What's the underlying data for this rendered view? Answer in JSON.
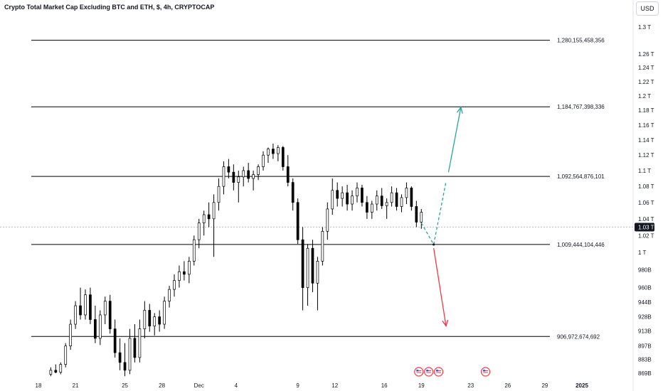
{
  "header": {
    "title": "Crypto Total Market Cap Excluding BTC and ETH, $, 4h, CRYPTOCAP",
    "currency_button": "USD"
  },
  "chart_data": {
    "type": "candlestick",
    "title": "Crypto Total Market Cap Excluding BTC and ETH, $, 4h, CRYPTOCAP",
    "y_scale": "log",
    "ylim": [
      864000000000,
      1330000000000
    ],
    "x_ticks": [
      {
        "label": "18",
        "day": 18
      },
      {
        "label": "21",
        "day": 21
      },
      {
        "label": "25",
        "day": 25
      },
      {
        "label": "28",
        "day": 28
      },
      {
        "label": "Dec",
        "day": 31
      },
      {
        "label": "4",
        "day": 34
      },
      {
        "label": "9",
        "day": 39
      },
      {
        "label": "12",
        "day": 42
      },
      {
        "label": "16",
        "day": 46
      },
      {
        "label": "19",
        "day": 49
      },
      {
        "label": "23",
        "day": 53
      },
      {
        "label": "26",
        "day": 56
      },
      {
        "label": "29",
        "day": 59
      },
      {
        "label": "2025",
        "day": 62
      }
    ],
    "y_ticks": [
      {
        "label": "1.3 T",
        "value": 1300000000000
      },
      {
        "label": "1.26 T",
        "value": 1260000000000
      },
      {
        "label": "1.24 T",
        "value": 1240000000000
      },
      {
        "label": "1.22 T",
        "value": 1220000000000
      },
      {
        "label": "1.2 T",
        "value": 1200000000000
      },
      {
        "label": "1.18 T",
        "value": 1180000000000
      },
      {
        "label": "1.16 T",
        "value": 1160000000000
      },
      {
        "label": "1.14 T",
        "value": 1140000000000
      },
      {
        "label": "1.12 T",
        "value": 1120000000000
      },
      {
        "label": "1.1 T",
        "value": 1100000000000
      },
      {
        "label": "1.08 T",
        "value": 1080000000000
      },
      {
        "label": "1.06 T",
        "value": 1060000000000
      },
      {
        "label": "1.04 T",
        "value": 1040000000000
      },
      {
        "label": "1.02 T",
        "value": 1020000000000
      },
      {
        "label": "1 T",
        "value": 1000000000000
      },
      {
        "label": "980B",
        "value": 980000000000
      },
      {
        "label": "960B",
        "value": 960000000000
      },
      {
        "label": "944B",
        "value": 944000000000
      },
      {
        "label": "928B",
        "value": 928000000000
      },
      {
        "label": "913B",
        "value": 913000000000
      },
      {
        "label": "897B",
        "value": 897000000000
      },
      {
        "label": "883B",
        "value": 883000000000
      },
      {
        "label": "869B",
        "value": 869000000000
      }
    ],
    "horizontal_levels": [
      {
        "label": "1,280,155,458,356",
        "value": 1280155458356
      },
      {
        "label": "1,184,767,398,336",
        "value": 1184767398336
      },
      {
        "label": "1,092,564,876,101",
        "value": 1092564876101
      },
      {
        "label": "1,009,444,104,446",
        "value": 1009444104446
      },
      {
        "label": "906,972,674,692",
        "value": 906972674692
      }
    ],
    "last_price": {
      "label": "1.03 T",
      "value": 1030000000000
    },
    "candles": [
      {
        "day": 19.0,
        "o": 868,
        "h": 875,
        "l": 866,
        "c": 872
      },
      {
        "day": 19.4,
        "o": 872,
        "h": 878,
        "l": 869,
        "c": 870
      },
      {
        "day": 19.8,
        "o": 870,
        "h": 880,
        "l": 868,
        "c": 878
      },
      {
        "day": 20.2,
        "o": 878,
        "h": 900,
        "l": 875,
        "c": 897
      },
      {
        "day": 20.6,
        "o": 897,
        "h": 925,
        "l": 893,
        "c": 920
      },
      {
        "day": 21.0,
        "o": 920,
        "h": 945,
        "l": 915,
        "c": 940
      },
      {
        "day": 21.4,
        "o": 940,
        "h": 960,
        "l": 925,
        "c": 930
      },
      {
        "day": 21.8,
        "o": 930,
        "h": 958,
        "l": 925,
        "c": 952
      },
      {
        "day": 22.2,
        "o": 952,
        "h": 960,
        "l": 920,
        "c": 925
      },
      {
        "day": 22.6,
        "o": 925,
        "h": 940,
        "l": 900,
        "c": 905
      },
      {
        "day": 23.0,
        "o": 905,
        "h": 935,
        "l": 898,
        "c": 930
      },
      {
        "day": 23.4,
        "o": 930,
        "h": 950,
        "l": 920,
        "c": 945
      },
      {
        "day": 23.8,
        "o": 945,
        "h": 952,
        "l": 910,
        "c": 915
      },
      {
        "day": 24.2,
        "o": 915,
        "h": 925,
        "l": 885,
        "c": 890
      },
      {
        "day": 24.6,
        "o": 890,
        "h": 905,
        "l": 872,
        "c": 880
      },
      {
        "day": 25.0,
        "o": 880,
        "h": 900,
        "l": 866,
        "c": 872
      },
      {
        "day": 25.4,
        "o": 872,
        "h": 915,
        "l": 868,
        "c": 905
      },
      {
        "day": 25.8,
        "o": 905,
        "h": 920,
        "l": 880,
        "c": 885
      },
      {
        "day": 26.2,
        "o": 885,
        "h": 925,
        "l": 880,
        "c": 915
      },
      {
        "day": 26.6,
        "o": 915,
        "h": 945,
        "l": 905,
        "c": 935
      },
      {
        "day": 27.0,
        "o": 935,
        "h": 942,
        "l": 912,
        "c": 918
      },
      {
        "day": 27.4,
        "o": 918,
        "h": 932,
        "l": 908,
        "c": 928
      },
      {
        "day": 27.8,
        "o": 928,
        "h": 935,
        "l": 912,
        "c": 920
      },
      {
        "day": 28.2,
        "o": 920,
        "h": 950,
        "l": 915,
        "c": 945
      },
      {
        "day": 28.6,
        "o": 945,
        "h": 962,
        "l": 938,
        "c": 958
      },
      {
        "day": 29.0,
        "o": 958,
        "h": 975,
        "l": 950,
        "c": 968
      },
      {
        "day": 29.4,
        "o": 968,
        "h": 985,
        "l": 960,
        "c": 978
      },
      {
        "day": 29.8,
        "o": 978,
        "h": 990,
        "l": 968,
        "c": 975
      },
      {
        "day": 30.2,
        "o": 975,
        "h": 995,
        "l": 965,
        "c": 990
      },
      {
        "day": 30.6,
        "o": 990,
        "h": 1020,
        "l": 985,
        "c": 1015
      },
      {
        "day": 31.0,
        "o": 1015,
        "h": 1040,
        "l": 1005,
        "c": 1035
      },
      {
        "day": 31.4,
        "o": 1035,
        "h": 1050,
        "l": 1020,
        "c": 1045
      },
      {
        "day": 31.8,
        "o": 1045,
        "h": 1060,
        "l": 1030,
        "c": 1040
      },
      {
        "day": 32.2,
        "o": 1040,
        "h": 1070,
        "l": 995,
        "c": 1060
      },
      {
        "day": 32.6,
        "o": 1060,
        "h": 1090,
        "l": 1050,
        "c": 1080
      },
      {
        "day": 33.0,
        "o": 1080,
        "h": 1112,
        "l": 1070,
        "c": 1105
      },
      {
        "day": 33.4,
        "o": 1105,
        "h": 1115,
        "l": 1090,
        "c": 1098
      },
      {
        "day": 33.8,
        "o": 1098,
        "h": 1108,
        "l": 1075,
        "c": 1085
      },
      {
        "day": 34.2,
        "o": 1085,
        "h": 1100,
        "l": 1060,
        "c": 1092
      },
      {
        "day": 34.6,
        "o": 1092,
        "h": 1105,
        "l": 1080,
        "c": 1100
      },
      {
        "day": 35.0,
        "o": 1100,
        "h": 1110,
        "l": 1085,
        "c": 1090
      },
      {
        "day": 35.4,
        "o": 1090,
        "h": 1100,
        "l": 1075,
        "c": 1095
      },
      {
        "day": 35.8,
        "o": 1095,
        "h": 1108,
        "l": 1088,
        "c": 1105
      },
      {
        "day": 36.2,
        "o": 1105,
        "h": 1125,
        "l": 1100,
        "c": 1120
      },
      {
        "day": 36.6,
        "o": 1120,
        "h": 1130,
        "l": 1110,
        "c": 1128
      },
      {
        "day": 37.0,
        "o": 1128,
        "h": 1135,
        "l": 1115,
        "c": 1122
      },
      {
        "day": 37.4,
        "o": 1122,
        "h": 1133,
        "l": 1112,
        "c": 1130
      },
      {
        "day": 37.8,
        "o": 1130,
        "h": 1132,
        "l": 1100,
        "c": 1105
      },
      {
        "day": 38.2,
        "o": 1105,
        "h": 1120,
        "l": 1080,
        "c": 1085
      },
      {
        "day": 38.6,
        "o": 1085,
        "h": 1090,
        "l": 1050,
        "c": 1060
      },
      {
        "day": 39.0,
        "o": 1060,
        "h": 1065,
        "l": 1010,
        "c": 1015
      },
      {
        "day": 39.4,
        "o": 1015,
        "h": 1030,
        "l": 935,
        "c": 960
      },
      {
        "day": 39.8,
        "o": 960,
        "h": 1010,
        "l": 940,
        "c": 1005
      },
      {
        "day": 40.2,
        "o": 1005,
        "h": 1015,
        "l": 955,
        "c": 965
      },
      {
        "day": 40.6,
        "o": 965,
        "h": 995,
        "l": 935,
        "c": 990
      },
      {
        "day": 41.0,
        "o": 990,
        "h": 1030,
        "l": 985,
        "c": 1025
      },
      {
        "day": 41.4,
        "o": 1025,
        "h": 1060,
        "l": 1015,
        "c": 1052
      },
      {
        "day": 41.8,
        "o": 1052,
        "h": 1090,
        "l": 1045,
        "c": 1075
      },
      {
        "day": 42.2,
        "o": 1075,
        "h": 1085,
        "l": 1055,
        "c": 1065
      },
      {
        "day": 42.6,
        "o": 1065,
        "h": 1080,
        "l": 1055,
        "c": 1072
      },
      {
        "day": 43.0,
        "o": 1072,
        "h": 1082,
        "l": 1050,
        "c": 1058
      },
      {
        "day": 43.4,
        "o": 1058,
        "h": 1075,
        "l": 1050,
        "c": 1068
      },
      {
        "day": 43.8,
        "o": 1068,
        "h": 1085,
        "l": 1060,
        "c": 1078
      },
      {
        "day": 44.2,
        "o": 1078,
        "h": 1082,
        "l": 1055,
        "c": 1060
      },
      {
        "day": 44.6,
        "o": 1060,
        "h": 1068,
        "l": 1040,
        "c": 1048
      },
      {
        "day": 45.0,
        "o": 1048,
        "h": 1062,
        "l": 1040,
        "c": 1058
      },
      {
        "day": 45.4,
        "o": 1058,
        "h": 1075,
        "l": 1050,
        "c": 1068
      },
      {
        "day": 45.8,
        "o": 1068,
        "h": 1078,
        "l": 1052,
        "c": 1056
      },
      {
        "day": 46.2,
        "o": 1056,
        "h": 1065,
        "l": 1040,
        "c": 1060
      },
      {
        "day": 46.6,
        "o": 1060,
        "h": 1080,
        "l": 1055,
        "c": 1072
      },
      {
        "day": 47.0,
        "o": 1072,
        "h": 1078,
        "l": 1050,
        "c": 1055
      },
      {
        "day": 47.4,
        "o": 1055,
        "h": 1070,
        "l": 1048,
        "c": 1066
      },
      {
        "day": 47.8,
        "o": 1066,
        "h": 1085,
        "l": 1058,
        "c": 1078
      },
      {
        "day": 48.2,
        "o": 1078,
        "h": 1080,
        "l": 1050,
        "c": 1055
      },
      {
        "day": 48.6,
        "o": 1055,
        "h": 1062,
        "l": 1030,
        "c": 1036
      },
      {
        "day": 49.0,
        "o": 1036,
        "h": 1052,
        "l": 1028,
        "c": 1048
      }
    ],
    "projections": [
      {
        "name": "path-dashed-down",
        "color": "#26a69a",
        "dashed": true,
        "points": [
          {
            "day": 49.0,
            "v": 1035
          },
          {
            "day": 50.0,
            "v": 1009.4
          }
        ]
      },
      {
        "name": "path-dashed-up",
        "color": "#26a69a",
        "dashed": true,
        "points": [
          {
            "day": 50.0,
            "v": 1009.4
          },
          {
            "day": 51.0,
            "v": 1086
          }
        ]
      },
      {
        "name": "arrow-up",
        "color": "#26a69a",
        "dashed": false,
        "points": [
          {
            "day": 51.2,
            "v": 1098
          },
          {
            "day": 52.2,
            "v": 1184
          }
        ]
      },
      {
        "name": "arrow-down",
        "color": "#f23645",
        "dashed": false,
        "points": [
          {
            "day": 50.0,
            "v": 1005
          },
          {
            "day": 51.0,
            "v": 918
          }
        ]
      }
    ],
    "event_markers": [
      {
        "day": 48.8,
        "icon": "us-flag-icon"
      },
      {
        "day": 49.6,
        "icon": "us-flag-icon"
      },
      {
        "day": 50.4,
        "icon": "us-flag-icon"
      },
      {
        "day": 54.2,
        "icon": "us-flag-icon"
      }
    ],
    "colors": {
      "bull_body": "#ffffff",
      "bear_body": "#000000",
      "wick": "#000000",
      "level_line": "#000000",
      "price_badge": "#131722",
      "up_arrow": "#26a69a",
      "down_arrow": "#f23645"
    }
  }
}
